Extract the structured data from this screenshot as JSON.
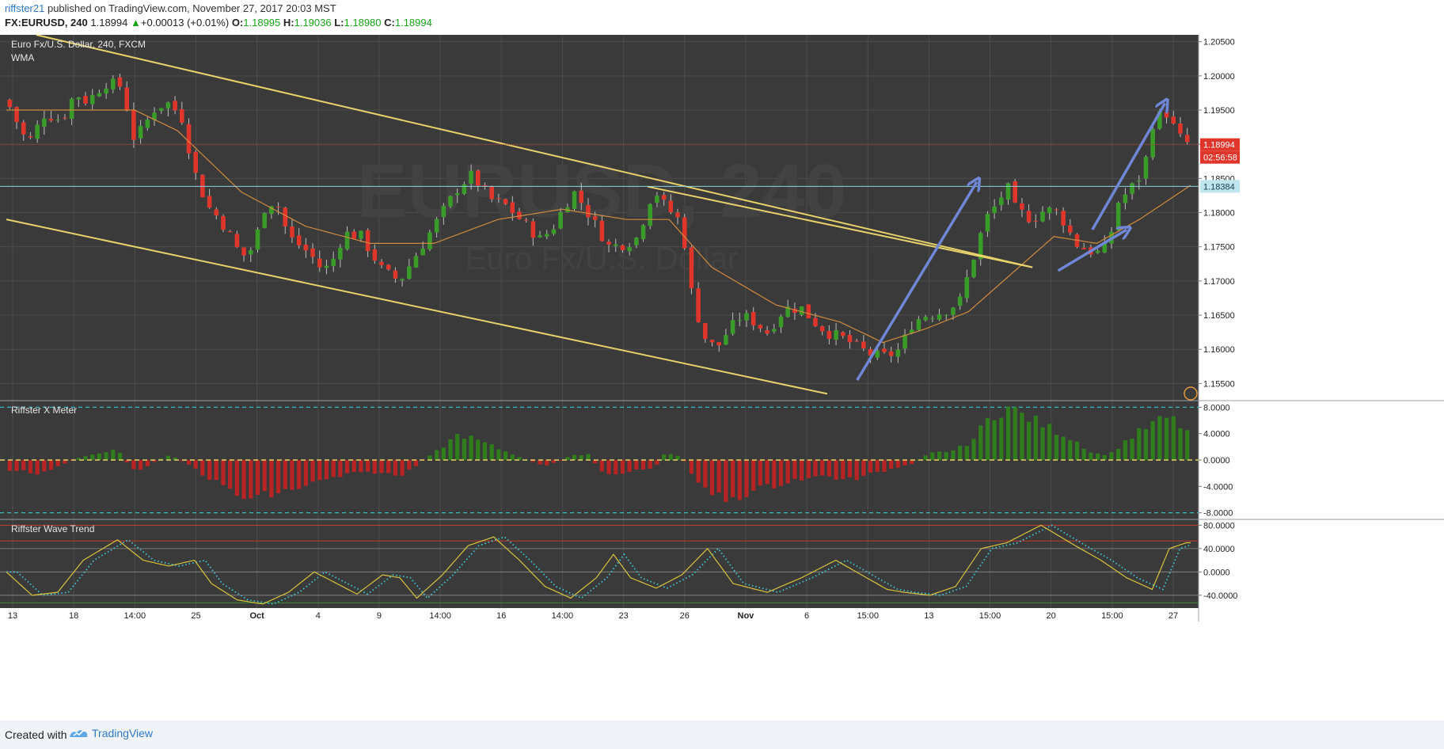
{
  "header": {
    "author": "riffster21",
    "published_text": "published on TradingView.com, November 27, 2017 20:03 MST",
    "symbol": "FX:EURUSD, 240",
    "last": "1.18994",
    "change": "+0.00013 (+0.01%)",
    "o_label": "O:",
    "o_value": "1.18995",
    "h_label": "H:",
    "h_value": "1.19036",
    "l_label": "L:",
    "l_value": "1.18980",
    "c_label": "C:",
    "c_value": "1.18994",
    "up_arrow": "▲"
  },
  "footer": {
    "created_with": "Created with",
    "brand": "TradingView",
    "brand_icon": "tradingview-logo-icon"
  },
  "colors": {
    "background": "#3a3a3a",
    "grid": "#4c4c4c",
    "up": "#3a9c28",
    "down": "#e0352b",
    "wma": "#d08a3e",
    "channel": "#e8d26a",
    "arrow": "#6f87d6",
    "axis_text": "#222222",
    "price_badge": "#e0352b",
    "level_badge": "#bfe5ef",
    "wave_line": "#d8c23c",
    "wave_signal": "#3cc8d8",
    "meter_pos": "#2f7d1c",
    "meter_neg": "#b82424"
  },
  "chart_data": [
    {
      "type": "candlestick",
      "title": "Euro Fx/U.S. Dollar, 240, FXCM",
      "subtitle": "WMA",
      "watermark": "EURUSD, 240",
      "watermark2": "Euro Fx/U.S. Dollar",
      "ylim": [
        1.1525,
        1.206
      ],
      "y_ticks": [
        "1.20500",
        "1.20000",
        "1.19500",
        "1.19000",
        "1.18500",
        "1.18000",
        "1.17500",
        "1.17000",
        "1.16500",
        "1.16000",
        "1.15500"
      ],
      "price_label": "1.18994",
      "countdown": "02:56:58",
      "level_label": "1.18384",
      "level": 1.18384,
      "current": 1.18994,
      "x_ticks": [
        "13",
        "18",
        "14:00",
        "25",
        "Oct",
        "4",
        "9",
        "14:00",
        "16",
        "14:00",
        "23",
        "26",
        "Nov",
        "6",
        "15:00",
        "13",
        "15:00",
        "20",
        "15:00",
        "27"
      ],
      "bold_x_ticks": [
        "Oct",
        "Nov"
      ],
      "bar_count": 172,
      "close_path": [
        [
          0,
          1.1965
        ],
        [
          5,
          1.19
        ],
        [
          9,
          1.1945
        ],
        [
          13,
          1.1935
        ],
        [
          16,
          1.1975
        ],
        [
          19,
          1.1962
        ],
        [
          23,
          1.199
        ],
        [
          27,
          1.1985
        ],
        [
          30,
          1.1905
        ],
        [
          35,
          1.1955
        ],
        [
          38,
          1.196
        ],
        [
          41,
          1.194
        ],
        [
          44,
          1.186
        ],
        [
          47,
          1.181
        ],
        [
          50,
          1.179
        ],
        [
          52,
          1.177
        ],
        [
          55,
          1.1735
        ],
        [
          58,
          1.175
        ],
        [
          60,
          1.1805
        ],
        [
          63,
          1.182
        ],
        [
          66,
          1.1765
        ],
        [
          71,
          1.174
        ],
        [
          74,
          1.1715
        ],
        [
          76,
          1.1725
        ],
        [
          79,
          1.177
        ],
        [
          83,
          1.1765
        ],
        [
          88,
          1.1715
        ],
        [
          92,
          1.17
        ],
        [
          96,
          1.174
        ],
        [
          101,
          1.179
        ],
        [
          106,
          1.184
        ],
        [
          109,
          1.1855
        ],
        [
          113,
          1.182
        ],
        [
          117,
          1.181
        ],
        [
          121,
          1.1785
        ],
        [
          125,
          1.176
        ],
        [
          128,
          1.178
        ],
        [
          131,
          1.1815
        ],
        [
          133,
          1.183
        ],
        [
          137,
          1.179
        ],
        [
          141,
          1.175
        ],
        [
          145,
          1.1755
        ],
        [
          148,
          1.1765
        ],
        [
          150,
          1.1815
        ],
        [
          152,
          1.183
        ],
        [
          154,
          1.181
        ],
        [
          158,
          1.1785
        ],
        [
          160,
          1.169
        ],
        [
          163,
          1.162
        ],
        [
          166,
          1.16
        ],
        [
          168,
          1.162
        ],
        [
          172,
          1.165
        ],
        [
          175,
          1.164
        ],
        [
          178,
          1.1625
        ],
        [
          182,
          1.166
        ],
        [
          186,
          1.166
        ],
        [
          189,
          1.164
        ],
        [
          192,
          1.1625
        ],
        [
          196,
          1.1615
        ],
        [
          200,
          1.16
        ],
        [
          203,
          1.159
        ],
        [
          206,
          1.159
        ],
        [
          209,
          1.16
        ],
        [
          212,
          1.164
        ],
        [
          215,
          1.165
        ],
        [
          219,
          1.1655
        ],
        [
          223,
          1.167
        ],
        [
          226,
          1.173
        ],
        [
          229,
          1.179
        ],
        [
          232,
          1.1815
        ],
        [
          234,
          1.184
        ],
        [
          236,
          1.1805
        ],
        [
          240,
          1.179
        ],
        [
          243,
          1.1805
        ],
        [
          246,
          1.18
        ],
        [
          248,
          1.178
        ],
        [
          250,
          1.1755
        ],
        [
          253,
          1.1745
        ],
        [
          256,
          1.174
        ],
        [
          258,
          1.176
        ],
        [
          260,
          1.1815
        ],
        [
          263,
          1.1835
        ],
        [
          266,
          1.186
        ],
        [
          268,
          1.193
        ],
        [
          271,
          1.195
        ],
        [
          273,
          1.1925
        ],
        [
          275,
          1.1905
        ],
        [
          277,
          1.19
        ]
      ],
      "path_length": 277,
      "series": [
        {
          "name": "WMA",
          "wma_path": [
            [
              0,
              1.195
            ],
            [
              15,
              1.195
            ],
            [
              30,
              1.195
            ],
            [
              40,
              1.192
            ],
            [
              55,
              1.183
            ],
            [
              70,
              1.178
            ],
            [
              85,
              1.1755
            ],
            [
              100,
              1.1755
            ],
            [
              115,
              1.179
            ],
            [
              130,
              1.1805
            ],
            [
              145,
              1.179
            ],
            [
              155,
              1.179
            ],
            [
              165,
              1.172
            ],
            [
              180,
              1.1665
            ],
            [
              195,
              1.164
            ],
            [
              205,
              1.161
            ],
            [
              215,
              1.163
            ],
            [
              225,
              1.1655
            ],
            [
              235,
              1.171
            ],
            [
              245,
              1.1765
            ],
            [
              255,
              1.1755
            ],
            [
              265,
              1.179
            ],
            [
              277,
              1.184
            ]
          ]
        }
      ],
      "channel_upper": {
        "from": [
          7,
          1.206
        ],
        "to": [
          240,
          1.172
        ]
      },
      "channel_lower": {
        "from": [
          0,
          1.179
        ],
        "to": [
          192,
          1.1535
        ]
      },
      "channel_mid": {
        "from": [
          150,
          1.1838
        ],
        "to": [
          240,
          1.172
        ]
      },
      "arrows": [
        {
          "from": [
            199,
            1.1555
          ],
          "to": [
            227,
            1.1845
          ]
        },
        {
          "from": [
            246,
            1.1715
          ],
          "to": [
            262,
            1.1775
          ]
        },
        {
          "from": [
            254,
            1.1775
          ],
          "to": [
            271,
            1.196
          ]
        }
      ]
    },
    {
      "type": "bar",
      "title": "Riffster X Meter",
      "ylim": [
        -9.0,
        9.0
      ],
      "y_ticks": [
        "8.0000",
        "4.0000",
        "0.0000",
        "-4.0000",
        "-8.0000"
      ],
      "dashed_levels": [
        8,
        -8
      ],
      "zero_level": 0,
      "segments": [
        [
          0,
          -1.5
        ],
        [
          8,
          -2.0
        ],
        [
          18,
          0.6
        ],
        [
          26,
          1.5
        ],
        [
          30,
          -1.8
        ],
        [
          38,
          0.8
        ],
        [
          43,
          -0.8
        ],
        [
          48,
          -3.0
        ],
        [
          56,
          -6.0
        ],
        [
          64,
          -5.0
        ],
        [
          72,
          -3.5
        ],
        [
          80,
          -2.2
        ],
        [
          86,
          -1.8
        ],
        [
          92,
          -2.5
        ],
        [
          100,
          1.0
        ],
        [
          106,
          4.0
        ],
        [
          112,
          2.5
        ],
        [
          120,
          0.5
        ],
        [
          126,
          -1.0
        ],
        [
          132,
          0.6
        ],
        [
          136,
          1.0
        ],
        [
          140,
          -2.5
        ],
        [
          148,
          -1.5
        ],
        [
          152,
          -1.0
        ],
        [
          154,
          1.0
        ],
        [
          158,
          0.5
        ],
        [
          162,
          -4.0
        ],
        [
          168,
          -6.0
        ],
        [
          176,
          -4.5
        ],
        [
          184,
          -3.0
        ],
        [
          192,
          -2.5
        ],
        [
          198,
          -3.0
        ],
        [
          206,
          -1.5
        ],
        [
          212,
          -0.5
        ],
        [
          216,
          1.0
        ],
        [
          222,
          1.5
        ],
        [
          226,
          3.0
        ],
        [
          230,
          6.5
        ],
        [
          234,
          8.0
        ],
        [
          242,
          5.5
        ],
        [
          250,
          3.0
        ],
        [
          254,
          1.0
        ],
        [
          258,
          0.8
        ],
        [
          262,
          3.0
        ],
        [
          268,
          5.5
        ],
        [
          272,
          6.5
        ],
        [
          277,
          4.0
        ]
      ]
    },
    {
      "type": "line",
      "title": "Riffster Wave Trend",
      "ylim": [
        -62,
        90
      ],
      "y_ticks": [
        "80.0000",
        "40.0000",
        "0.0000",
        "-40.0000"
      ],
      "bands": [
        80,
        53
      ],
      "series": [
        {
          "name": "wave",
          "values_path": [
            [
              0,
              0
            ],
            [
              6,
              -40
            ],
            [
              12,
              -35
            ],
            [
              18,
              20
            ],
            [
              26,
              55
            ],
            [
              32,
              20
            ],
            [
              38,
              10
            ],
            [
              44,
              20
            ],
            [
              48,
              -20
            ],
            [
              54,
              -48
            ],
            [
              60,
              -55
            ],
            [
              66,
              -35
            ],
            [
              72,
              0
            ],
            [
              76,
              -15
            ],
            [
              82,
              -38
            ],
            [
              88,
              -5
            ],
            [
              92,
              -10
            ],
            [
              96,
              -45
            ],
            [
              102,
              -5
            ],
            [
              108,
              45
            ],
            [
              114,
              60
            ],
            [
              120,
              20
            ],
            [
              126,
              -25
            ],
            [
              132,
              -45
            ],
            [
              138,
              -10
            ],
            [
              142,
              30
            ],
            [
              146,
              -10
            ],
            [
              152,
              -28
            ],
            [
              158,
              -5
            ],
            [
              164,
              40
            ],
            [
              170,
              -20
            ],
            [
              178,
              -35
            ],
            [
              186,
              -10
            ],
            [
              194,
              20
            ],
            [
              200,
              -5
            ],
            [
              206,
              -30
            ],
            [
              210,
              -35
            ],
            [
              216,
              -40
            ],
            [
              222,
              -25
            ],
            [
              228,
              40
            ],
            [
              234,
              50
            ],
            [
              242,
              80
            ],
            [
              250,
              45
            ],
            [
              256,
              20
            ],
            [
              262,
              -10
            ],
            [
              268,
              -30
            ],
            [
              272,
              40
            ],
            [
              276,
              50
            ]
          ]
        }
      ]
    }
  ]
}
